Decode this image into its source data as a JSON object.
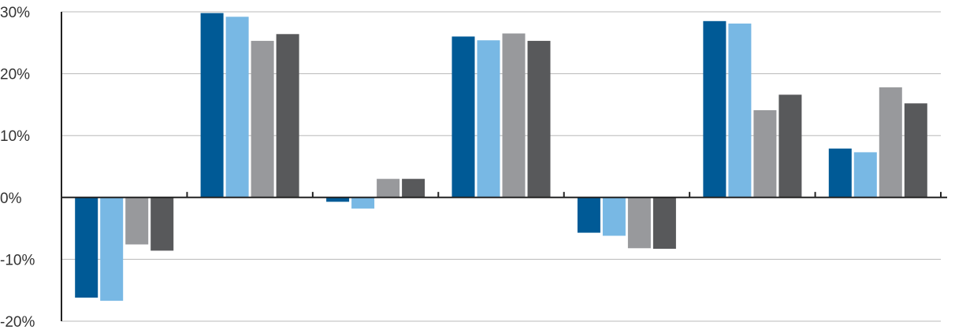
{
  "chart_data": {
    "type": "bar",
    "title": "",
    "xlabel": "",
    "ylabel": "",
    "ylim": [
      -20,
      30
    ],
    "yticks": [
      -20,
      -10,
      0,
      10,
      20,
      30
    ],
    "ytick_labels": [
      "-20%",
      "-10%",
      "0%",
      "10%",
      "20%",
      "30%"
    ],
    "grid": true,
    "legend": "none",
    "category_count": 7,
    "series": [
      {
        "color": "#005a96",
        "values": [
          -16.2,
          29.8,
          -0.7,
          26.0,
          -5.7,
          28.5,
          7.9
        ]
      },
      {
        "color": "#78b8e4",
        "values": [
          -16.7,
          29.2,
          -1.8,
          25.4,
          -6.2,
          28.1,
          7.3
        ]
      },
      {
        "color": "#98999c",
        "values": [
          -7.6,
          25.3,
          3.0,
          26.5,
          -8.2,
          14.1,
          17.8
        ]
      },
      {
        "color": "#58595b",
        "values": [
          -8.6,
          26.4,
          3.0,
          25.3,
          -8.3,
          16.6,
          15.2
        ]
      }
    ]
  }
}
